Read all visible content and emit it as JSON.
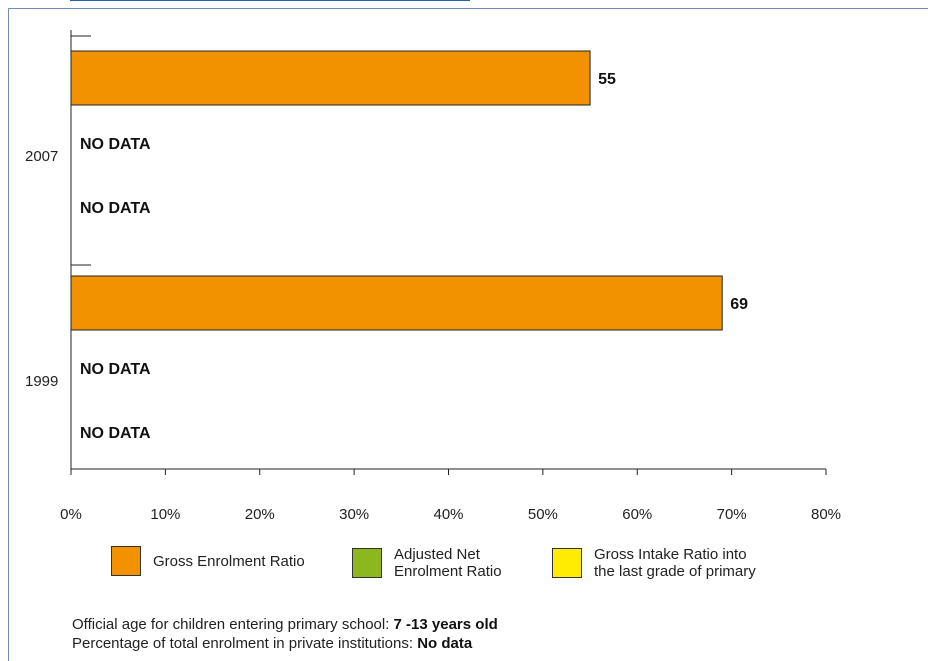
{
  "chart_data": {
    "type": "bar",
    "orientation": "horizontal",
    "categories": [
      "2007",
      "1999"
    ],
    "series": [
      {
        "name": "Gross Enrolment Ratio",
        "color": "#f39200",
        "values": [
          55,
          69
        ]
      },
      {
        "name": "Adjusted Net Enrolment Ratio",
        "color": "#8cb81e",
        "values": [
          null,
          null
        ]
      },
      {
        "name": "Gross Intake Ratio into the last grade of primary",
        "color": "#ffec00",
        "values": [
          null,
          null
        ]
      }
    ],
    "no_data_label": "NO DATA",
    "x_ticks": [
      "0%",
      "10%",
      "20%",
      "30%",
      "40%",
      "50%",
      "60%",
      "70%",
      "80%"
    ],
    "xlim": [
      0,
      80
    ],
    "grid": false,
    "legend_position": "bottom"
  },
  "legend": [
    {
      "label": "Gross Enrolment Ratio",
      "color": "#f39200"
    },
    {
      "label": "Adjusted Net\nEnrolment Ratio",
      "color": "#8cb81e"
    },
    {
      "label": "Gross Intake Ratio into\nthe last grade of primary",
      "color": "#ffec00"
    }
  ],
  "footer": {
    "age_label": "Official age for children entering primary school: ",
    "age_value": "7 -13 years old",
    "private_label": "Percentage of total enrolment in private institutions: ",
    "private_value": "No data"
  }
}
